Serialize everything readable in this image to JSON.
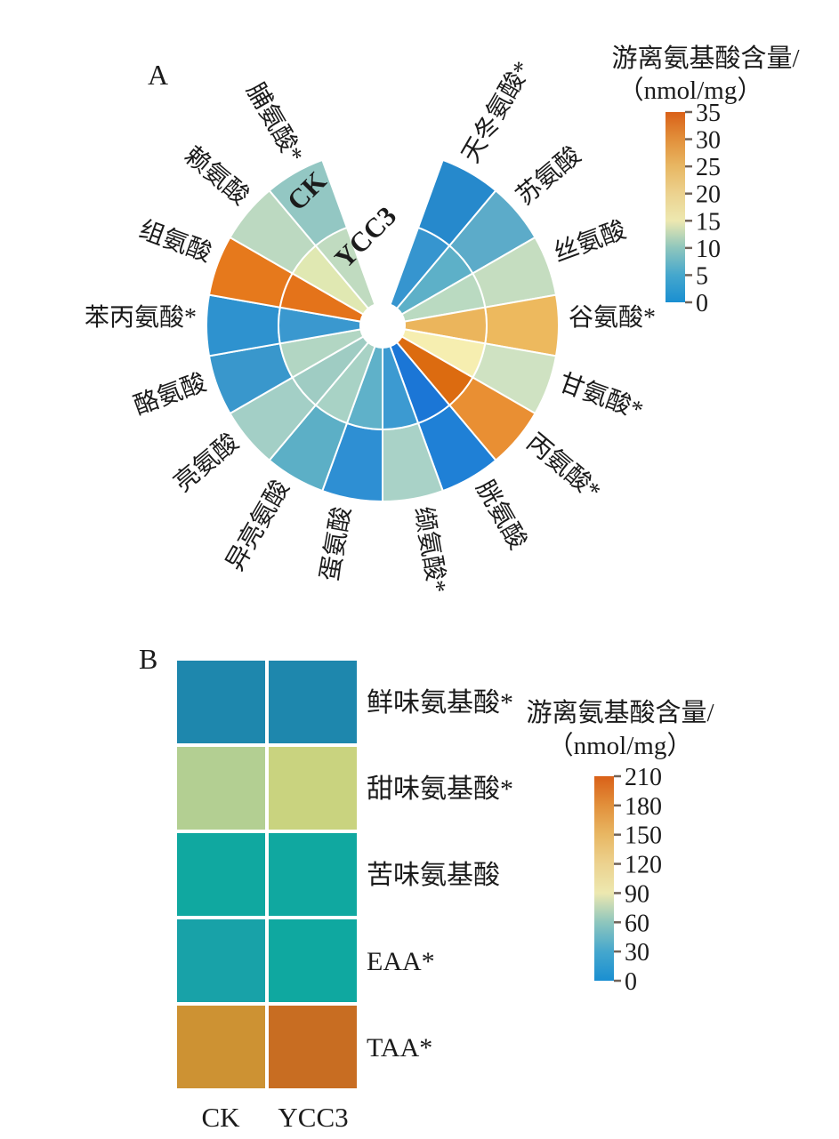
{
  "panels": {
    "a": {
      "label": "A",
      "legend_title_line1": "游离氨基酸含量/",
      "legend_title_line2": "（nmol/mg）"
    },
    "b": {
      "label": "B",
      "legend_title_line1": "游离氨基酸含量/",
      "legend_title_line2": "（nmol/mg）"
    }
  },
  "chart_data": [
    {
      "id": "A",
      "type": "heatmap",
      "subtype": "polar-annular-heatmap",
      "legend_title": "游离氨基酸含量/（nmol/mg）",
      "unit": "nmol/mg",
      "rings": [
        "CK",
        "YCC3"
      ],
      "ring_layout": "CK = outer ring, YCC3 = inner ring, gap at top between 110 and 70 degrees",
      "categories": [
        "天冬氨酸*",
        "苏氨酸",
        "丝氨酸",
        "谷氨酸*",
        "甘氨酸*",
        "丙氨酸*",
        "胱氨酸",
        "缬氨酸*",
        "蛋氨酸",
        "异亮氨酸",
        "亮氨酸",
        "酪氨酸",
        "苯丙氨酸*",
        "组氨酸",
        "赖氨酸",
        "脯氨酸*"
      ],
      "series": [
        {
          "name": "CK",
          "ring": "outer",
          "values": [
            2,
            6,
            12.5,
            23,
            12.5,
            27.5,
            1,
            10.5,
            2.5,
            6.5,
            10.5,
            4,
            2.5,
            30,
            12,
            9.5
          ],
          "colors": [
            "#2689cc",
            "#5cabc9",
            "#c5ddc0",
            "#edb95e",
            "#cfe2c2",
            "#e98f33",
            "#1f80d6",
            "#a9d2c7",
            "#2e8fd3",
            "#5cafc6",
            "#a3cfc6",
            "#3997cc",
            "#2e92cf",
            "#e6791c",
            "#bcd9c1",
            "#93c7c3"
          ]
        },
        {
          "name": "YCC3",
          "ring": "inner",
          "values": [
            3,
            7,
            12,
            23.5,
            15.5,
            32.5,
            0.5,
            4,
            7,
            10.5,
            10,
            11.5,
            4,
            31,
            14,
            12
          ],
          "colors": [
            "#3695cf",
            "#5db0c8",
            "#badac1",
            "#ebb55c",
            "#f6eeb0",
            "#dc6b10",
            "#1b76d6",
            "#3c9ad1",
            "#5fb1c9",
            "#a8d2c5",
            "#9fccc3",
            "#b2d6c3",
            "#3a98cf",
            "#e4731a",
            "#e0e8b2",
            "#c0dbc0"
          ]
        }
      ],
      "colorbar": {
        "min": 0,
        "max": 35,
        "ticks": [
          35,
          30,
          25,
          20,
          15,
          10,
          5,
          0
        ],
        "gradient_bottom_to_top": [
          "#1a8fd1",
          "#45a7cd",
          "#8ec6bd",
          "#ede8b0",
          "#ecd28f",
          "#e8b763",
          "#e2903b",
          "#d96018"
        ]
      }
    },
    {
      "id": "B",
      "type": "heatmap",
      "legend_title": "游离氨基酸含量/（nmol/mg）",
      "unit": "nmol/mg",
      "columns": [
        "CK",
        "YCC3"
      ],
      "rows": [
        "鲜味氨基酸*",
        "甜味氨基酸*",
        "苦味氨基酸",
        "EAA*",
        "TAA*"
      ],
      "values": [
        [
          30,
          30
        ],
        [
          90,
          95
        ],
        [
          60,
          60
        ],
        [
          55,
          60
        ],
        [
          165,
          190
        ]
      ],
      "colors": [
        [
          "#1e87ad",
          "#1e87ad"
        ],
        [
          "#b3cf92",
          "#c9d37f"
        ],
        [
          "#10a8a0",
          "#10a8a0"
        ],
        [
          "#18a2a8",
          "#0fa8a0"
        ],
        [
          "#cd9233",
          "#c86d22"
        ]
      ],
      "colorbar": {
        "min": 0,
        "max": 210,
        "ticks": [
          210,
          180,
          150,
          120,
          90,
          60,
          30,
          0
        ],
        "gradient_bottom_to_top": [
          "#1a8fd1",
          "#45a7cd",
          "#8ec6bd",
          "#ede8b0",
          "#ecd28f",
          "#e8b763",
          "#e2903b",
          "#d96018"
        ]
      }
    }
  ]
}
